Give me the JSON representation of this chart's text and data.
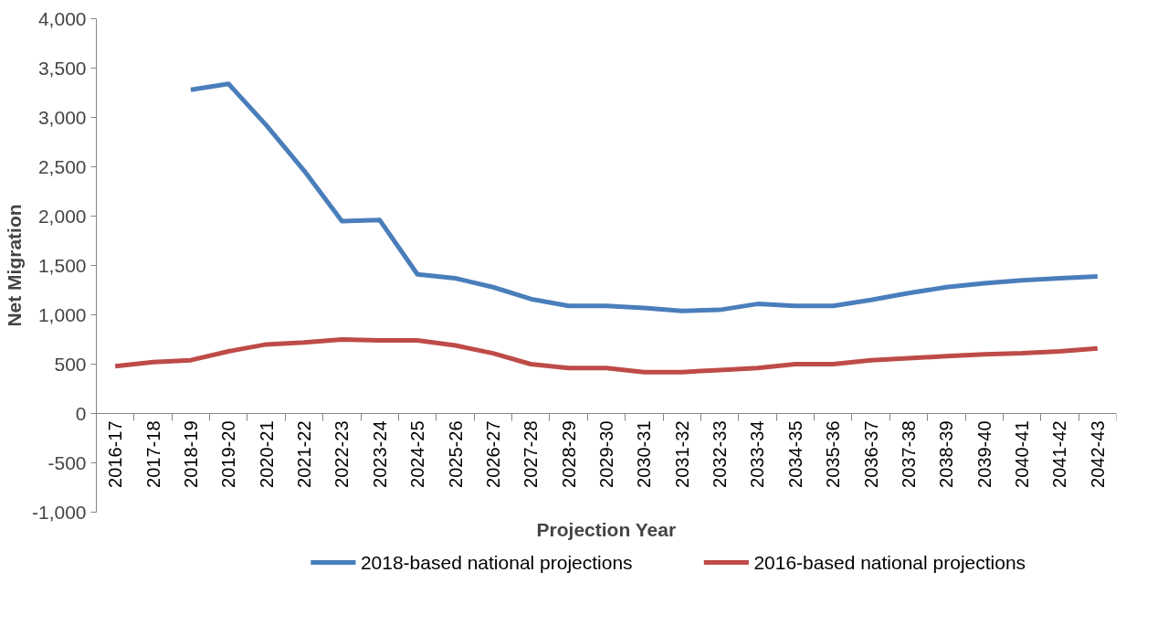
{
  "chart_data": {
    "type": "line",
    "xlabel": "Projection Year",
    "ylabel": "Net Migration",
    "categories": [
      "2016-17",
      "2017-18",
      "2018-19",
      "2019-20",
      "2020-21",
      "2021-22",
      "2022-23",
      "2023-24",
      "2024-25",
      "2025-26",
      "2026-27",
      "2027-28",
      "2028-29",
      "2029-30",
      "2030-31",
      "2031-32",
      "2032-33",
      "2033-34",
      "2034-35",
      "2035-36",
      "2036-37",
      "2037-38",
      "2038-39",
      "2039-40",
      "2040-41",
      "2041-42",
      "2042-43"
    ],
    "series": [
      {
        "name": "2018-based national projections",
        "color": "#4a7ebb",
        "values": [
          null,
          null,
          3280,
          3340,
          2920,
          2460,
          1950,
          1960,
          1410,
          1370,
          1280,
          1160,
          1090,
          1090,
          1070,
          1040,
          1050,
          1110,
          1090,
          1090,
          1150,
          1220,
          1280,
          1320,
          1350,
          1370,
          1390
        ]
      },
      {
        "name": "2016-based national projections",
        "color": "#be4b48",
        "values": [
          480,
          520,
          540,
          630,
          700,
          720,
          750,
          740,
          740,
          690,
          610,
          500,
          460,
          460,
          420,
          420,
          440,
          460,
          500,
          500,
          540,
          560,
          580,
          600,
          610,
          630,
          660
        ]
      }
    ],
    "ylim": [
      -1000,
      4000
    ],
    "yticks": [
      {
        "value": -1000,
        "label": "-1,000"
      },
      {
        "value": -500,
        "label": "-500"
      },
      0,
      500,
      {
        "value": 1000,
        "label": "1,000"
      },
      {
        "value": 1500,
        "label": "1,500"
      },
      {
        "value": 2000,
        "label": "2,000"
      },
      {
        "value": 2500,
        "label": "2,500"
      },
      {
        "value": 3000,
        "label": "3,000"
      },
      {
        "value": 3500,
        "label": "3,500"
      },
      {
        "value": 4000,
        "label": "4,000"
      }
    ],
    "grid": false,
    "legend": "bottom",
    "line_style": "solid",
    "marker": "none"
  }
}
